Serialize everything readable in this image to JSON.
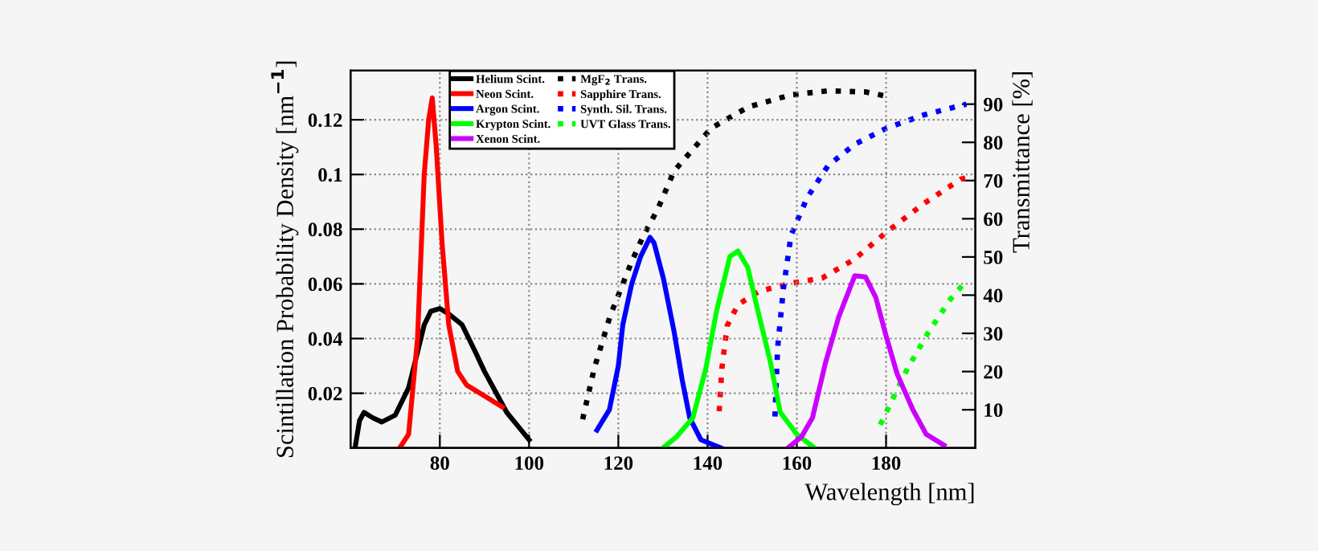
{
  "chart_data": {
    "type": "line",
    "xlabel": "Wavelength [nm]",
    "ylabel": "Scintillation Probability Density [nm$^{−1}$]",
    "y2label": "Transmittance [%]",
    "xlim": [
      60,
      200
    ],
    "xticks": [
      80,
      100,
      120,
      140,
      160,
      180
    ],
    "ylim": [
      0,
      0.138
    ],
    "yticks": [
      0.02,
      0.04,
      0.06,
      0.08,
      0.1,
      0.12
    ],
    "y2lim": [
      0,
      98.8
    ],
    "y2ticks": [
      10,
      20,
      30,
      40,
      50,
      60,
      70,
      80,
      90
    ],
    "grid": true,
    "legend": "top left",
    "series": [
      {
        "name": "Helium Scint.",
        "color": "#000000",
        "line_style": "solid",
        "x": [
          61,
          62,
          63,
          65,
          67,
          70,
          73,
          75,
          76.5,
          78,
          80,
          82,
          85,
          88,
          90,
          93,
          95,
          98,
          100
        ],
        "values": [
          0,
          0.01,
          0.013,
          0.011,
          0.0095,
          0.012,
          0.022,
          0.035,
          0.045,
          0.05,
          0.051,
          0.049,
          0.045,
          0.035,
          0.028,
          0.019,
          0.013,
          0.007,
          0.003
        ]
      },
      {
        "name": "Neon Scint.",
        "color": "#ff0000",
        "line_style": "solid",
        "x": [
          71,
          73,
          75,
          76.5,
          77.5,
          78.3,
          79.2,
          80.5,
          82,
          84,
          86,
          88,
          91,
          94
        ],
        "values": [
          0,
          0.005,
          0.04,
          0.1,
          0.12,
          0.128,
          0.11,
          0.075,
          0.045,
          0.028,
          0.023,
          0.021,
          0.018,
          0.015
        ]
      },
      {
        "name": "Argon Scint.",
        "color": "#0000ff",
        "line_style": "solid",
        "x": [
          115.2,
          116.5,
          118,
          120,
          121,
          123,
          125,
          127.1,
          128,
          130.1,
          132.5,
          134.3,
          136,
          138.5,
          143
        ],
        "values": [
          0.0065,
          0.01,
          0.014,
          0.03,
          0.045,
          0.06,
          0.07,
          0.077,
          0.075,
          0.062,
          0.0425,
          0.025,
          0.011,
          0.003,
          0
        ]
      },
      {
        "name": "Krypton Scint.",
        "color": "#00ff00",
        "line_style": "solid",
        "x": [
          130,
          133,
          136.7,
          139.6,
          142,
          145,
          146.8,
          149,
          151,
          154,
          156.3,
          160,
          164
        ],
        "values": [
          0,
          0.004,
          0.011,
          0.029,
          0.05,
          0.07,
          0.072,
          0.066,
          0.052,
          0.032,
          0.013,
          0.005,
          0
        ]
      },
      {
        "name": "Xenon Scint.",
        "color": "#cc00ff",
        "line_style": "solid",
        "x": [
          158,
          161,
          163.5,
          166.4,
          169.4,
          171.8,
          173,
          175.4,
          177.7,
          180,
          182.5,
          186,
          189,
          193
        ],
        "values": [
          0,
          0.004,
          0.011,
          0.031,
          0.048,
          0.058,
          0.063,
          0.0625,
          0.055,
          0.041,
          0.027,
          0.014,
          0.005,
          0.001
        ]
      },
      {
        "name": "MgF$_{2}$ Trans.",
        "color": "#000000",
        "line_style": "dotted",
        "axis": "y2",
        "x": [
          112,
          114.6,
          118.2,
          123,
          125.4,
          128.9,
          132.5,
          140.8,
          149.2,
          158.6,
          167,
          175.4,
          181.3
        ],
        "values": [
          7.5,
          20.8,
          34.7,
          48.8,
          55,
          62.7,
          72.5,
          83.7,
          89.3,
          92.4,
          93.5,
          93.2,
          91.8
        ]
      },
      {
        "name": "Sapphire Trans.",
        "color": "#ff0000",
        "line_style": "dotted",
        "axis": "y2",
        "x": [
          142.6,
          143.2,
          144.4,
          146.8,
          151.5,
          158.7,
          165.7,
          172.9,
          180,
          188.5,
          196.8,
          199
        ],
        "values": [
          9.6,
          20.8,
          32,
          37.5,
          41,
          43.1,
          44.5,
          49.4,
          56.4,
          64,
          70.4,
          71
        ]
      },
      {
        "name": "Synth. Sil. Trans.",
        "color": "#0000ff",
        "line_style": "dotted",
        "axis": "y2",
        "x": [
          155.1,
          155.7,
          157,
          158.7,
          162.3,
          167,
          173,
          180.1,
          188.5,
          198
        ],
        "values": [
          8.2,
          26.3,
          41.7,
          55.7,
          65.5,
          73.9,
          79.5,
          83.7,
          87.2,
          90
        ]
      },
      {
        "name": "UVT Glass Trans.",
        "color": "#00ff00",
        "line_style": "dotted",
        "axis": "y2",
        "x": [
          178.7,
          181.3,
          184.8,
          189.6,
          194.4,
          198
        ],
        "values": [
          6.1,
          12.4,
          20.8,
          30.5,
          38.9,
          43.8
        ]
      }
    ]
  }
}
